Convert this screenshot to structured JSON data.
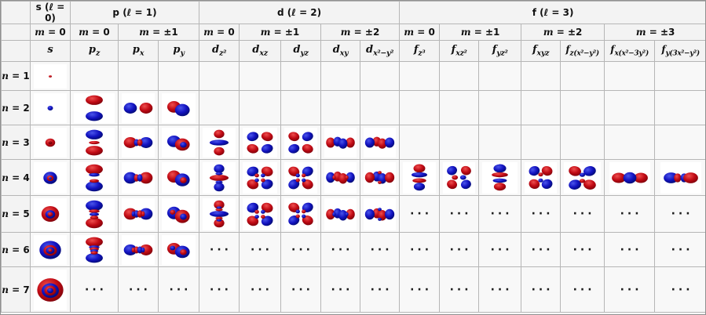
{
  "palette": {
    "lobe_red": "#c00a14",
    "lobe_red_light": "#ee4e4e",
    "lobe_red_dark": "#6e0008",
    "lobe_blue": "#1212c0",
    "lobe_blue_light": "#4a55ea",
    "lobe_blue_dark": "#000a5e",
    "dark_red": "#7a0008",
    "header_bg": "#f3f3f3",
    "cell_bg": "#f8f8f8",
    "image_bg": "#ffffff",
    "border": "#b6b6b6"
  },
  "table": {
    "l_groups": [
      {
        "base": "s",
        "rest": " (ℓ = 0)",
        "span": 1
      },
      {
        "base": "p",
        "rest": " (ℓ = 1)",
        "span": 3
      },
      {
        "base": "d",
        "rest": " (ℓ = 2)",
        "span": 5
      },
      {
        "base": "f",
        "rest": " (ℓ = 3)",
        "span": 7
      }
    ],
    "m_groups": [
      {
        "var": "m",
        "rest": " = 0",
        "span": 1
      },
      {
        "var": "m",
        "rest": " = 0",
        "span": 1
      },
      {
        "var": "m",
        "rest": " = ±1",
        "span": 2
      },
      {
        "var": "m",
        "rest": " = 0",
        "span": 1
      },
      {
        "var": "m",
        "rest": " = ±1",
        "span": 2
      },
      {
        "var": "m",
        "rest": " = ±2",
        "span": 2
      },
      {
        "var": "m",
        "rest": " = 0",
        "span": 1
      },
      {
        "var": "m",
        "rest": " = ±1",
        "span": 2
      },
      {
        "var": "m",
        "rest": " = ±2",
        "span": 2
      },
      {
        "var": "m",
        "rest": " = ±3",
        "span": 2
      }
    ],
    "orbital_headers": [
      {
        "base": "s",
        "sub": ""
      },
      {
        "base": "p",
        "sub": "z"
      },
      {
        "base": "p",
        "sub": "x"
      },
      {
        "base": "p",
        "sub": "y"
      },
      {
        "base": "d",
        "sub": "z²"
      },
      {
        "base": "d",
        "sub": "xz"
      },
      {
        "base": "d",
        "sub": "yz"
      },
      {
        "base": "d",
        "sub": "xy"
      },
      {
        "base": "d",
        "sub": "x²−y²"
      },
      {
        "base": "f",
        "sub": "z³"
      },
      {
        "base": "f",
        "sub": "xz²"
      },
      {
        "base": "f",
        "sub": "yz²"
      },
      {
        "base": "f",
        "sub": "xyz"
      },
      {
        "base": "f",
        "sub": "z(x²−y²)"
      },
      {
        "base": "f",
        "sub": "x(x²−3y²)"
      },
      {
        "base": "f",
        "sub": "y(3x²−y²)"
      }
    ],
    "row_labels": [
      {
        "var": "n",
        "rest": " = 1"
      },
      {
        "var": "n",
        "rest": " = 2"
      },
      {
        "var": "n",
        "rest": " = 3"
      },
      {
        "var": "n",
        "rest": " = 4"
      },
      {
        "var": "n",
        "rest": " = 5"
      },
      {
        "var": "n",
        "rest": " = 6"
      },
      {
        "var": "n",
        "rest": " = 7"
      }
    ],
    "ellipsis": "···",
    "grid": [
      [
        "s:1",
        "",
        "",
        "",
        "",
        "",
        "",
        "",
        "",
        "",
        "",
        "",
        "",
        "",
        "",
        ""
      ],
      [
        "s:2",
        "pz:2",
        "px:2",
        "py:2",
        "",
        "",
        "",
        "",
        "",
        "",
        "",
        "",
        "",
        "",
        "",
        ""
      ],
      [
        "s:3",
        "pz:3",
        "px:3",
        "py:3",
        "dz2:3",
        "dxz:3",
        "dyz:3",
        "dxy:3",
        "dx2y2:3",
        "",
        "",
        "",
        "",
        "",
        "",
        ""
      ],
      [
        "s:4",
        "pz:4",
        "px:4",
        "py:4",
        "dz2:4",
        "dxz:4",
        "dyz:4",
        "dxy:4",
        "dx2y2:4",
        "fz3:4",
        "fxz2:4",
        "fyz2:4",
        "fxyz:4",
        "fzx2y2:4",
        "fx3:4",
        "fy3:4"
      ],
      [
        "s:5",
        "pz:5",
        "px:5",
        "py:5",
        "dz2:5",
        "dxz:5",
        "dyz:5",
        "dxy:5",
        "dx2y2:5",
        "dots",
        "dots",
        "dots",
        "dots",
        "dots",
        "dots",
        "dots"
      ],
      [
        "s:6",
        "pz:6",
        "px:6",
        "py:6",
        "dots",
        "dots",
        "dots",
        "dots",
        "dots",
        "dots",
        "dots",
        "dots",
        "dots",
        "dots",
        "dots",
        "dots"
      ],
      [
        "s:7",
        "dots",
        "dots",
        "dots",
        "dots",
        "dots",
        "dots",
        "dots",
        "dots",
        "dots",
        "dots",
        "dots",
        "dots",
        "dots",
        "dots",
        "dots"
      ]
    ]
  }
}
